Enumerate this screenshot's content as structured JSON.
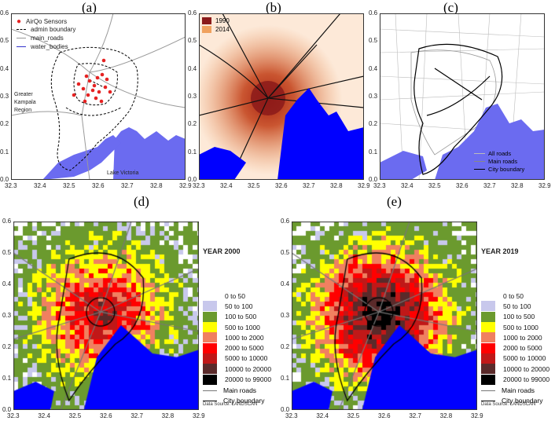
{
  "panels": {
    "a": {
      "letter": "(a)",
      "legend": {
        "sensors": "AirQo Sensors",
        "admin": "admin boundary",
        "roads": "main_roads",
        "water": "water_bodies"
      },
      "region_label": [
        "Greater",
        "Kampala",
        "Region"
      ],
      "lake_label": "Lake Victoria"
    },
    "b": {
      "letter": "(b)",
      "legend": [
        {
          "label": "1990",
          "color": "#8b1a1a"
        },
        {
          "label": "2014",
          "color": "#f0a15e"
        }
      ]
    },
    "c": {
      "letter": "(c)",
      "legend": {
        "all_roads": "All roads",
        "main_roads": "Main roads",
        "city_boundary": "City boundary"
      }
    },
    "d": {
      "letter": "(d)",
      "year": "YEAR 2000",
      "source": "Data Source: LANDSCAN"
    },
    "e": {
      "letter": "(e)",
      "year": "YEAR 2019",
      "source": "Data Source: LANDSCAN"
    }
  },
  "axes_top": {
    "x_ticks": [
      "32.3",
      "32.4",
      "32.5",
      "32.6",
      "32.7",
      "32.8",
      "32.9"
    ],
    "y_ticks": [
      "0.0",
      "0.1",
      "0.2",
      "0.3",
      "0.4",
      "0.5",
      "0.6"
    ]
  },
  "axes_bottom": {
    "x_ticks": [
      "32.3",
      "32.4",
      "32.5",
      "32.6",
      "32.7",
      "32.8",
      "32.9"
    ],
    "y_ticks": [
      "0.0",
      "0.1",
      "0.2",
      "0.3",
      "0.4",
      "0.5",
      "0.6"
    ]
  },
  "population_legend": [
    {
      "label": "0 to 50",
      "color": "#ffffff"
    },
    {
      "label": "50 to 100",
      "color": "#c8c8ec"
    },
    {
      "label": "100 to 500",
      "color": "#6b9a2e"
    },
    {
      "label": "500 to 1000",
      "color": "#ffff00"
    },
    {
      "label": "1000 to 2000",
      "color": "#f08060"
    },
    {
      "label": "2000 to 5000",
      "color": "#ff0000"
    },
    {
      "label": "5000 to 10000",
      "color": "#c01818"
    },
    {
      "label": "10000 to 20000",
      "color": "#5a2a2a"
    },
    {
      "label": "20000 to 99000",
      "color": "#000000"
    }
  ],
  "line_legend": {
    "main_roads": "Main roads",
    "city_boundary": "City boundary"
  },
  "colors": {
    "water": "#0000ff",
    "water_light": "#6b6bf0",
    "road": "#777777"
  }
}
